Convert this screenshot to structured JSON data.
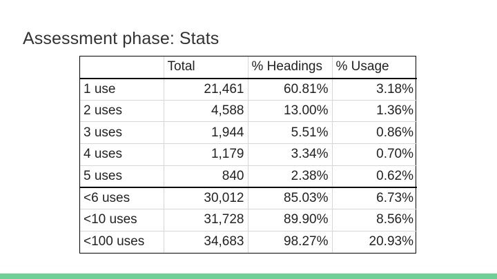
{
  "slide": {
    "title": "Assessment phase: Stats"
  },
  "table": {
    "headers": [
      "",
      "Total",
      "% Headings",
      "% Usage"
    ],
    "rows": [
      {
        "label": "1 use",
        "total": "21,461",
        "headings": "60.81%",
        "usage": "3.18%"
      },
      {
        "label": "2 uses",
        "total": "4,588",
        "headings": "13.00%",
        "usage": "1.36%"
      },
      {
        "label": "3 uses",
        "total": "1,944",
        "headings": "5.51%",
        "usage": "0.86%"
      },
      {
        "label": "4 uses",
        "total": "1,179",
        "headings": "3.34%",
        "usage": "0.70%"
      },
      {
        "label": "5 uses",
        "total": "840",
        "headings": "2.38%",
        "usage": "0.62%"
      },
      {
        "label": "<6 uses",
        "total": "30,012",
        "headings": "85.03%",
        "usage": "6.73%"
      },
      {
        "label": "<10 uses",
        "total": "31,728",
        "headings": "89.90%",
        "usage": "8.56%"
      },
      {
        "label": "<100 uses",
        "total": "34,683",
        "headings": "98.27%",
        "usage": "20.93%"
      }
    ]
  },
  "colors": {
    "footer_bar": "#6fcf97"
  }
}
